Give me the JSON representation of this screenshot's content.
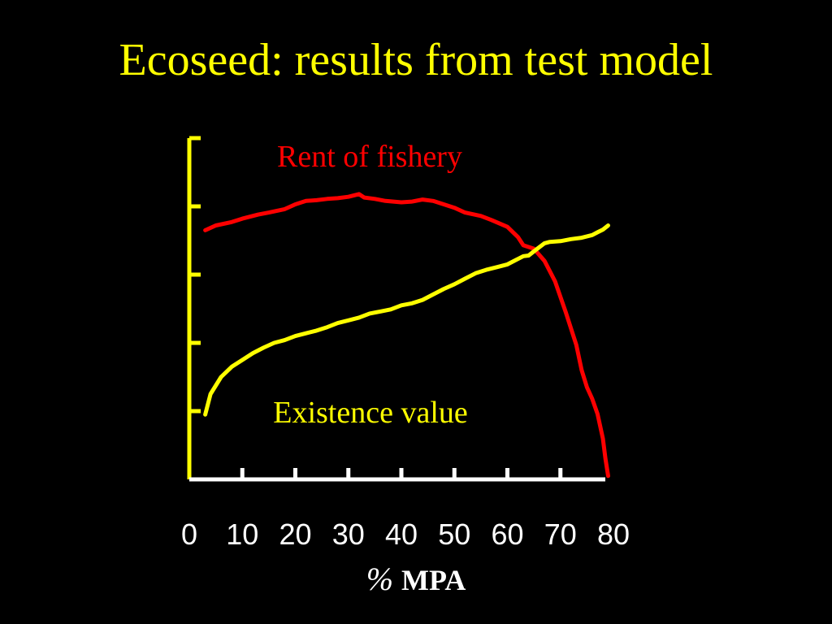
{
  "slide": {
    "title": "Ecoseed: results from test model",
    "x_unit_symbol": "%",
    "x_unit_name": "MPA"
  },
  "colors": {
    "background": "#000000",
    "title": "#FFFF00",
    "rent_series": "#FF0000",
    "existence_series": "#FFFF00",
    "x_axis": "#FFFFFF",
    "y_axis": "#FFFF00",
    "tick_labels": "#FFFFFF"
  },
  "chart_data": {
    "type": "line",
    "title": "",
    "xlabel": "% MPA",
    "ylabel": "",
    "xlim": [
      0,
      80
    ],
    "ylim": [
      0,
      5
    ],
    "x_ticks": [
      0,
      10,
      20,
      30,
      40,
      50,
      60,
      70,
      80
    ],
    "x_tick_labels": [
      "0",
      "10",
      "20",
      "30",
      "40",
      "50",
      "60",
      "70",
      "80"
    ],
    "y_ticks": [
      1,
      2,
      3,
      4,
      5
    ],
    "y_tick_labels_shown": false,
    "grid": false,
    "legend": "none",
    "series": [
      {
        "name": "Rent of fishery",
        "color": "#FF0000",
        "label_position": "top-center",
        "x": [
          3,
          5,
          8,
          10,
          13,
          15,
          18,
          20,
          22,
          24,
          26,
          28,
          30,
          32,
          33,
          35,
          37,
          40,
          42,
          44,
          46,
          48,
          50,
          52,
          55,
          57,
          60,
          62,
          63,
          65,
          67,
          69,
          71,
          73,
          74,
          75,
          76,
          77,
          78,
          78.5,
          79
        ],
        "y": [
          3.65,
          3.72,
          3.77,
          3.82,
          3.88,
          3.91,
          3.96,
          4.03,
          4.08,
          4.09,
          4.11,
          4.12,
          4.14,
          4.18,
          4.13,
          4.11,
          4.08,
          4.06,
          4.07,
          4.1,
          4.08,
          4.03,
          3.98,
          3.91,
          3.86,
          3.8,
          3.7,
          3.55,
          3.43,
          3.38,
          3.2,
          2.9,
          2.45,
          1.97,
          1.6,
          1.35,
          1.18,
          0.96,
          0.6,
          0.3,
          0.05
        ]
      },
      {
        "name": "Existence value",
        "color": "#FFFF00",
        "label_position": "bottom-center",
        "x": [
          3,
          4,
          6,
          8,
          10,
          12,
          14,
          16,
          18,
          20,
          22,
          24,
          26,
          28,
          30,
          32,
          34,
          36,
          38,
          40,
          42,
          44,
          46,
          48,
          50,
          52,
          54,
          56,
          58,
          60,
          62,
          63,
          64,
          65,
          66,
          67,
          68,
          70,
          72,
          74,
          76,
          77,
          78,
          79
        ],
        "y": [
          0.95,
          1.25,
          1.5,
          1.65,
          1.75,
          1.85,
          1.93,
          2.0,
          2.04,
          2.1,
          2.14,
          2.18,
          2.23,
          2.29,
          2.33,
          2.37,
          2.43,
          2.46,
          2.49,
          2.55,
          2.58,
          2.63,
          2.71,
          2.79,
          2.86,
          2.94,
          3.02,
          3.07,
          3.11,
          3.15,
          3.23,
          3.27,
          3.28,
          3.34,
          3.4,
          3.46,
          3.48,
          3.49,
          3.52,
          3.54,
          3.58,
          3.62,
          3.66,
          3.72
        ]
      }
    ]
  }
}
